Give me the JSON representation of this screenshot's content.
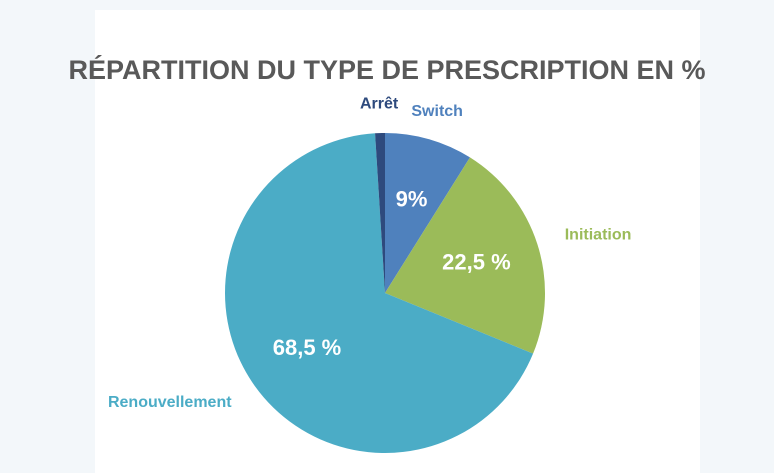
{
  "chart_data": {
    "type": "pie",
    "title": "RÉPARTITION DU TYPE DE PRESCRIPTION EN %",
    "categories": [
      "Switch",
      "Initiation",
      "Renouvellement",
      "Arrêt"
    ],
    "values": [
      9,
      22.5,
      68.5,
      1
    ],
    "value_labels": [
      "9%",
      "22,5 %",
      "68,5 %",
      null
    ],
    "colors": [
      "#4f81bd",
      "#9bbb59",
      "#4bacc6",
      "#2e4a7d"
    ]
  }
}
